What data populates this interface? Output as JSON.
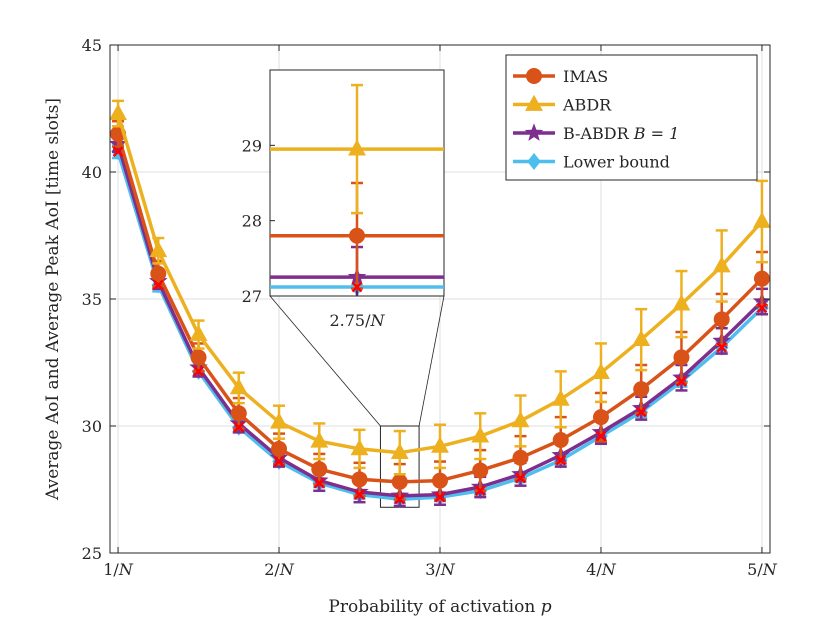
{
  "chart_data": {
    "type": "line",
    "xlabel_text": "Probability of activation ",
    "xlabel_var": "p",
    "ylabel": "Average AoI and Average Peak AoI [time slots]",
    "x": [
      1,
      1.25,
      1.5,
      1.75,
      2,
      2.25,
      2.5,
      2.75,
      3,
      3.25,
      3.5,
      3.75,
      4,
      4.25,
      4.5,
      4.75,
      5
    ],
    "xlim": [
      0.95,
      5.05
    ],
    "ylim": [
      25,
      45
    ],
    "xtick_values": [
      1,
      2,
      3,
      4,
      5
    ],
    "xtick_labels": [
      "1/N",
      "2/N",
      "3/N",
      "4/N",
      "5/N"
    ],
    "ytick_values": [
      25,
      30,
      35,
      40,
      45
    ],
    "ytick_labels": [
      "25",
      "30",
      "35",
      "40",
      "45"
    ],
    "grid": true,
    "legend_position": "top-right",
    "series": [
      {
        "name": "Lower bound",
        "legend_label": "Lower bound",
        "color": "#4DBEEE",
        "marker": "diamond",
        "values": [
          40.8,
          35.55,
          32.15,
          29.95,
          28.6,
          27.75,
          27.3,
          27.12,
          27.2,
          27.45,
          27.95,
          28.65,
          29.6,
          30.55,
          31.75,
          33.1,
          34.65
        ],
        "err": [
          0.25,
          0.25,
          0.2,
          0.2,
          0.15,
          0.15,
          0.15,
          0.15,
          0.15,
          0.15,
          0.15,
          0.15,
          0.2,
          0.2,
          0.2,
          0.2,
          0.25
        ]
      },
      {
        "name": "B-ABDR B = 1",
        "legend_label": "B-ABDR ",
        "legend_math": "B = 1",
        "color": "#7E2F8E",
        "marker": "star",
        "values": [
          41.1,
          35.7,
          32.3,
          30.1,
          28.75,
          27.85,
          27.4,
          27.25,
          27.3,
          27.6,
          28.1,
          28.85,
          29.75,
          30.7,
          31.9,
          33.35,
          34.9
        ],
        "err": [
          0.3,
          0.3,
          0.35,
          0.35,
          0.35,
          0.4,
          0.4,
          0.4,
          0.4,
          0.4,
          0.45,
          0.45,
          0.45,
          0.45,
          0.5,
          0.5,
          0.5
        ]
      },
      {
        "name": "IMAS",
        "legend_label": "IMAS",
        "color": "#D95319",
        "marker": "circle",
        "values": [
          41.5,
          36.0,
          32.7,
          30.5,
          29.1,
          28.3,
          27.9,
          27.8,
          27.85,
          28.25,
          28.75,
          29.45,
          30.35,
          31.45,
          32.7,
          34.2,
          35.8
        ],
        "err": [
          0.5,
          0.5,
          0.55,
          0.6,
          0.6,
          0.6,
          0.65,
          0.7,
          0.75,
          0.8,
          0.85,
          0.9,
          0.95,
          0.95,
          1.0,
          1.0,
          1.05
        ]
      },
      {
        "name": "ABDR",
        "legend_label": "ABDR",
        "color": "#EDB120",
        "marker": "triangle",
        "values": [
          42.3,
          36.9,
          33.6,
          31.5,
          30.15,
          29.4,
          29.1,
          28.95,
          29.2,
          29.6,
          30.2,
          31.05,
          32.1,
          33.4,
          34.8,
          36.3,
          38.05
        ],
        "err": [
          0.5,
          0.5,
          0.55,
          0.6,
          0.65,
          0.7,
          0.75,
          0.85,
          0.85,
          0.9,
          1.0,
          1.1,
          1.15,
          1.2,
          1.3,
          1.4,
          1.6
        ]
      }
    ],
    "cross_marker_color": "#FF0000",
    "inset": {
      "xcenter": 2.75,
      "xtick_label": "2.75/N",
      "ylim": [
        27,
        30
      ],
      "ytick_values": [
        27,
        28,
        29
      ],
      "ytick_labels": [
        "27",
        "28",
        "29"
      ],
      "zoom_box_xlim": [
        2.63,
        2.87
      ],
      "zoom_box_ylim": [
        26.8,
        30.0
      ]
    }
  }
}
